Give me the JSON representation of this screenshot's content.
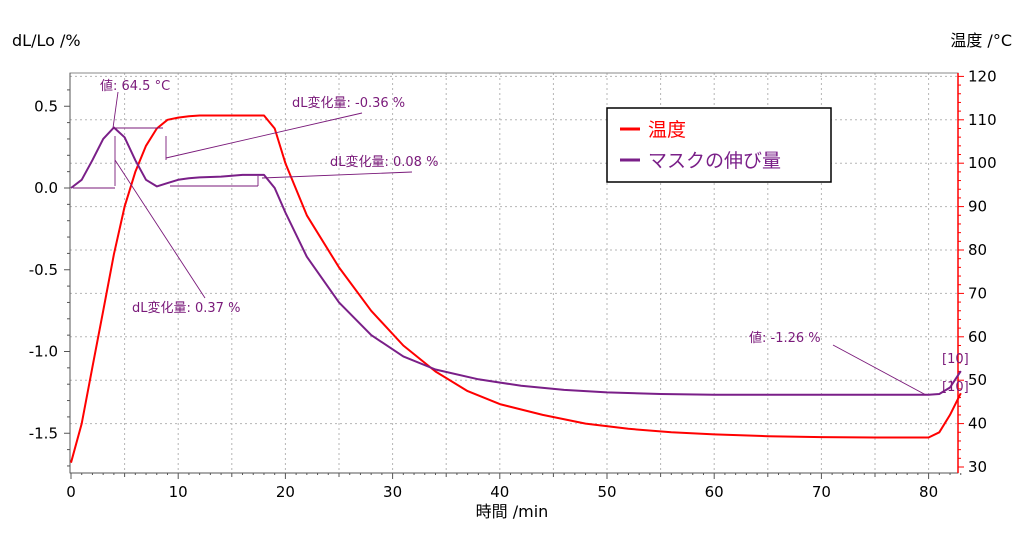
{
  "chart_data": {
    "type": "line",
    "xlabel": "時間 /min",
    "ylabel_left": "dL/Lo /%",
    "ylabel_right": "温度 /°C",
    "xlim": [
      0,
      83
    ],
    "ylim_left": [
      -1.75,
      0.7
    ],
    "ylim_right": [
      30,
      120
    ],
    "x_ticks": [
      0,
      10,
      20,
      30,
      40,
      50,
      60,
      70,
      80
    ],
    "y_left_ticks": [
      0.5,
      0.0,
      -0.5,
      -1.0,
      -1.5
    ],
    "y_left_tick_labels": [
      "0.5",
      "0.0",
      "-0.5",
      "-1.0",
      "-1.5"
    ],
    "y_right_ticks": [
      30,
      40,
      50,
      60,
      70,
      80,
      90,
      100,
      110,
      120
    ],
    "grid": true,
    "legend_placement": "top-right",
    "series": [
      {
        "name": "温度",
        "axis": "right",
        "color": "#ff0000",
        "x": [
          0,
          1,
          2,
          3,
          4,
          5,
          6,
          7,
          8,
          9,
          10,
          11,
          12,
          14,
          16,
          18,
          19,
          20,
          22,
          25,
          28,
          31,
          34,
          37,
          40,
          44,
          48,
          52,
          56,
          60,
          65,
          70,
          75,
          80,
          81,
          82,
          83
        ],
        "y": [
          31,
          40,
          53,
          66,
          79,
          90,
          98,
          104,
          108,
          110,
          110.5,
          110.8,
          111,
          111,
          111,
          111,
          108,
          100,
          88,
          76,
          66,
          58,
          52,
          47.5,
          44.5,
          42,
          40,
          38.8,
          38,
          37.5,
          37.1,
          36.9,
          36.8,
          36.8,
          38,
          42,
          47
        ]
      },
      {
        "name": "マスクの伸び量",
        "axis": "left",
        "color": "#7a1f88",
        "x": [
          0,
          1,
          2,
          3,
          4,
          5,
          6,
          7,
          8,
          9,
          10,
          11,
          12,
          14,
          16,
          18,
          19,
          20,
          22,
          25,
          28,
          31,
          34,
          38,
          42,
          46,
          50,
          55,
          60,
          65,
          70,
          75,
          80,
          81,
          82,
          83
        ],
        "y": [
          0.0,
          0.05,
          0.17,
          0.3,
          0.37,
          0.31,
          0.17,
          0.05,
          0.01,
          0.03,
          0.05,
          0.06,
          0.065,
          0.07,
          0.08,
          0.08,
          0.0,
          -0.15,
          -0.42,
          -0.7,
          -0.9,
          -1.03,
          -1.11,
          -1.17,
          -1.21,
          -1.235,
          -1.25,
          -1.26,
          -1.265,
          -1.265,
          -1.265,
          -1.265,
          -1.265,
          -1.26,
          -1.22,
          -1.12
        ]
      }
    ],
    "annotations": [
      {
        "text": "値: 64.5 °C"
      },
      {
        "text": "dL変化量: -0.36 %"
      },
      {
        "text": "dL変化量: 0.08 %"
      },
      {
        "text": "dL変化量: 0.37 %"
      },
      {
        "text": "値: -1.26 %"
      },
      {
        "text": "[10]"
      },
      {
        "text": "[10]"
      }
    ]
  }
}
